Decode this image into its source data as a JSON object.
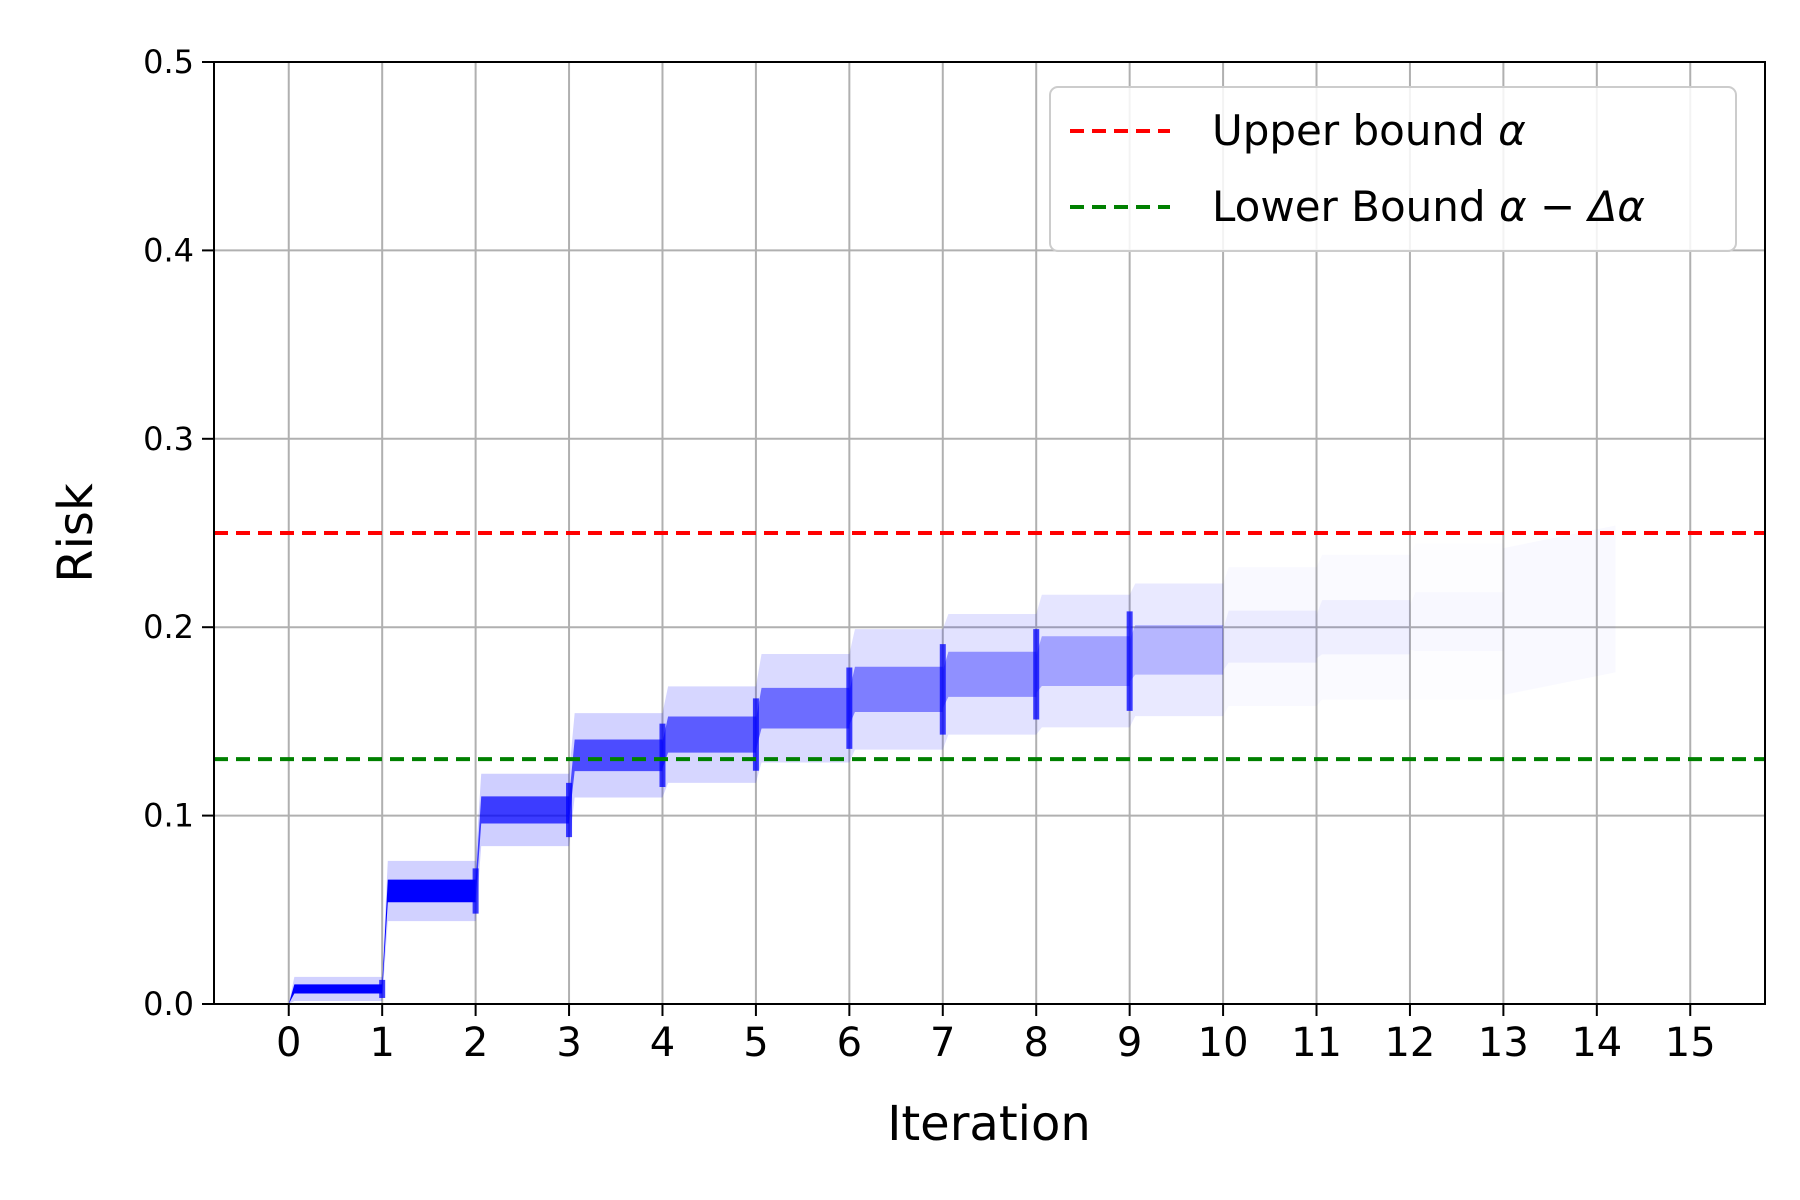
{
  "chart_data": {
    "type": "line",
    "xlabel": "Iteration",
    "ylabel": "Risk",
    "xlim": [
      -0.8,
      15.8
    ],
    "ylim": [
      0.0,
      0.5
    ],
    "xticks": [
      "0",
      "1",
      "2",
      "3",
      "4",
      "5",
      "6",
      "7",
      "8",
      "9",
      "10",
      "11",
      "12",
      "13",
      "14",
      "15"
    ],
    "yticks": [
      "0.0",
      "0.1",
      "0.2",
      "0.3",
      "0.4",
      "0.5"
    ],
    "grid": true,
    "legend_position": "top-right",
    "reference_lines": [
      {
        "name": "Upper bound α",
        "label_text": "Upper bound ",
        "label_symbol": "α",
        "y": 0.25,
        "color": "#ff0000",
        "style": "dashed"
      },
      {
        "name": "Lower Bound α − Δα",
        "label_text": "Lower Bound ",
        "label_symbol": "α − Δα",
        "y": 0.13,
        "color": "#008000",
        "style": "dashed"
      }
    ],
    "band": {
      "color": "#0000ff",
      "description_of_series": "many overlapping risk trajectories",
      "points": [
        {
          "x": 0,
          "center": 0.0,
          "spread": 0.0
        },
        {
          "x": 1,
          "center": 0.008,
          "spread": 0.004
        },
        {
          "x": 2,
          "center": 0.06,
          "spread": 0.01
        },
        {
          "x": 3,
          "center": 0.103,
          "spread": 0.012
        },
        {
          "x": 4,
          "center": 0.132,
          "spread": 0.014
        },
        {
          "x": 5,
          "center": 0.143,
          "spread": 0.016
        },
        {
          "x": 6,
          "center": 0.157,
          "spread": 0.018
        },
        {
          "x": 7,
          "center": 0.167,
          "spread": 0.02
        },
        {
          "x": 8,
          "center": 0.175,
          "spread": 0.02
        },
        {
          "x": 9,
          "center": 0.182,
          "spread": 0.022
        },
        {
          "x": 10,
          "center": 0.188,
          "spread": 0.022
        },
        {
          "x": 11,
          "center": 0.195,
          "spread": 0.023
        },
        {
          "x": 12,
          "center": 0.2,
          "spread": 0.024
        },
        {
          "x": 13,
          "center": 0.203,
          "spread": 0.026
        }
      ]
    }
  }
}
